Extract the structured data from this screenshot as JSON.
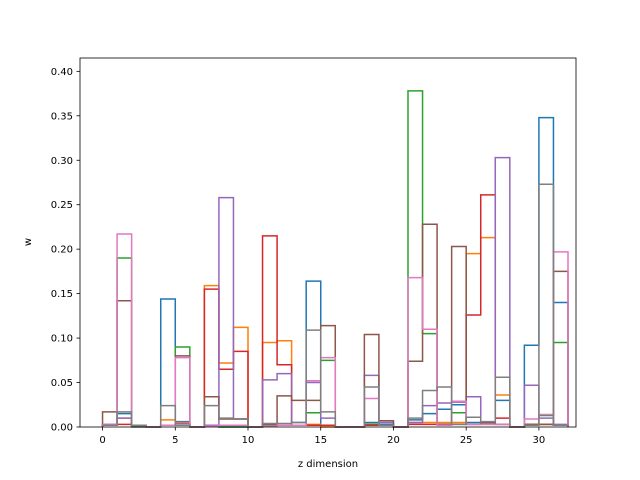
{
  "chart_data": {
    "type": "histogram-step",
    "title": "",
    "xlabel": "z dimension",
    "ylabel": "w",
    "xlim": [
      -1.55,
      32.55
    ],
    "ylim": [
      0,
      0.415
    ],
    "xticks": [
      0,
      5,
      10,
      15,
      20,
      25,
      30
    ],
    "yticks": [
      0.0,
      0.05,
      0.1,
      0.15,
      0.2,
      0.25,
      0.3,
      0.35,
      0.4
    ],
    "grid": false,
    "bin_edges_start": 0,
    "bin_width": 1,
    "series": [
      {
        "color": "#1f77b4",
        "values": [
          0.003,
          0.015,
          0.002,
          0,
          0.144,
          0.006,
          0,
          0.002,
          0,
          0,
          0,
          0.002,
          0.002,
          0.005,
          0.164,
          0.002,
          0,
          0,
          0.005,
          0.003,
          0,
          0.008,
          0.015,
          0.02,
          0.025,
          0.005,
          0.005,
          0.03,
          0,
          0.092,
          0.348,
          0.14
        ]
      },
      {
        "color": "#ff7f0e",
        "values": [
          0.002,
          0.01,
          0.001,
          0,
          0.008,
          0.005,
          0,
          0.159,
          0.072,
          0.112,
          0,
          0.095,
          0.097,
          0.002,
          0.003,
          0,
          0,
          0,
          0.003,
          0.002,
          0,
          0.005,
          0.005,
          0.005,
          0.005,
          0.195,
          0.213,
          0.036,
          0,
          0.003,
          0.003,
          0.002
        ]
      },
      {
        "color": "#2ca02c",
        "values": [
          0.003,
          0.19,
          0,
          0,
          0.002,
          0.09,
          0,
          0.002,
          0,
          0,
          0,
          0.002,
          0.002,
          0.002,
          0.016,
          0.075,
          0,
          0,
          0.003,
          0.002,
          0,
          0.378,
          0.105,
          0.003,
          0.016,
          0.003,
          0.003,
          0.003,
          0,
          0.003,
          0.013,
          0.095
        ]
      },
      {
        "color": "#d62728",
        "values": [
          0.002,
          0.003,
          0.001,
          0,
          0.002,
          0.002,
          0,
          0.155,
          0.065,
          0.085,
          0,
          0.215,
          0.07,
          0.002,
          0.002,
          0.002,
          0,
          0,
          0.002,
          0.002,
          0,
          0.003,
          0.003,
          0.003,
          0.003,
          0.126,
          0.261,
          0.01,
          0,
          0.003,
          0.003,
          0.002
        ]
      },
      {
        "color": "#9467bd",
        "values": [
          0.003,
          0.01,
          0.001,
          0,
          0.002,
          0.004,
          0,
          0.002,
          0.258,
          0.009,
          0,
          0.053,
          0.06,
          0.002,
          0.05,
          0.01,
          0,
          0,
          0.058,
          0.005,
          0,
          0.005,
          0.024,
          0.027,
          0.028,
          0.034,
          0.004,
          0.303,
          0,
          0.047,
          0.01,
          0.003
        ]
      },
      {
        "color": "#8c564b",
        "values": [
          0.017,
          0.142,
          0.002,
          0,
          0.002,
          0.08,
          0,
          0.034,
          0.009,
          0.009,
          0,
          0.003,
          0.035,
          0.03,
          0.03,
          0.114,
          0,
          0,
          0.104,
          0.007,
          0,
          0.074,
          0.228,
          0.003,
          0.203,
          0.003,
          0.005,
          0.003,
          0,
          0.003,
          0.003,
          0.175
        ]
      },
      {
        "color": "#e377c2",
        "values": [
          0.003,
          0.217,
          0.002,
          0,
          0.002,
          0.078,
          0,
          0.001,
          0.002,
          0.002,
          0,
          0.001,
          0.002,
          0.002,
          0.052,
          0.078,
          0,
          0,
          0.032,
          0.002,
          0,
          0.168,
          0.11,
          0.002,
          0.029,
          0.003,
          0.003,
          0.003,
          0,
          0.009,
          0.014,
          0.197
        ]
      },
      {
        "color": "#7f7f7f",
        "values": [
          0.002,
          0.017,
          0.002,
          0,
          0.024,
          0.002,
          0,
          0.024,
          0.01,
          0.009,
          0,
          0.004,
          0.004,
          0.005,
          0.109,
          0.017,
          0,
          0,
          0.045,
          0.002,
          0,
          0.01,
          0.041,
          0.045,
          0.003,
          0.011,
          0.006,
          0.056,
          0,
          0.002,
          0.273,
          0.002
        ]
      }
    ]
  }
}
